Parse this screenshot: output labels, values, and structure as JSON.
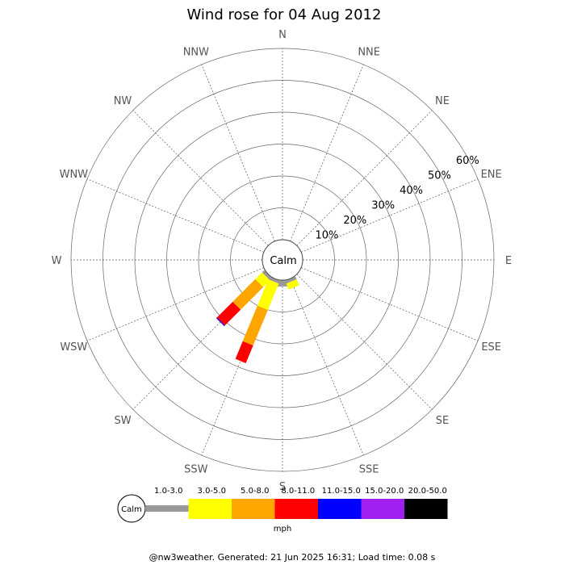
{
  "chart_data": {
    "type": "wind-rose",
    "title": "Wind rose for 04 Aug 2012",
    "directions": [
      "N",
      "NNE",
      "NE",
      "ENE",
      "E",
      "ESE",
      "SE",
      "SSE",
      "S",
      "SSW",
      "SW",
      "WSW",
      "W",
      "WNW",
      "NW",
      "NNW"
    ],
    "radial_ticks": [
      "10%",
      "20%",
      "30%",
      "40%",
      "50%",
      "60%"
    ],
    "radial_values": [
      10,
      20,
      30,
      40,
      50,
      60
    ],
    "r_max": 60,
    "unit": "%",
    "calm_label": "Calm",
    "speed_bins": [
      {
        "label": "1.0-3.0",
        "color": "#999999"
      },
      {
        "label": "3.0-5.0",
        "color": "#ffff00"
      },
      {
        "label": "5.0-8.0",
        "color": "#ffa500"
      },
      {
        "label": "8.0-11.0",
        "color": "#ff0000"
      },
      {
        "label": "11.0-15.0",
        "color": "#0000ff"
      },
      {
        "label": "15.0-20.0",
        "color": "#a020f0"
      },
      {
        "label": "20.0-50.0",
        "color": "#000000"
      }
    ],
    "speed_unit": "mph",
    "series": [
      {
        "direction": "S",
        "values": [
          2,
          0,
          0,
          0,
          0,
          0,
          0
        ]
      },
      {
        "direction": "SSE",
        "values": [
          1,
          2,
          0,
          0,
          0,
          0,
          0
        ]
      },
      {
        "direction": "SSW",
        "values": [
          1,
          9,
          12,
          6,
          0,
          0,
          0
        ]
      },
      {
        "direction": "SW",
        "values": [
          1,
          3,
          10,
          7,
          0.3,
          0,
          0
        ]
      }
    ]
  },
  "footer": "@nw3weather. Generated: 21 Jun 2025 16:31; Load time: 0.08 s"
}
